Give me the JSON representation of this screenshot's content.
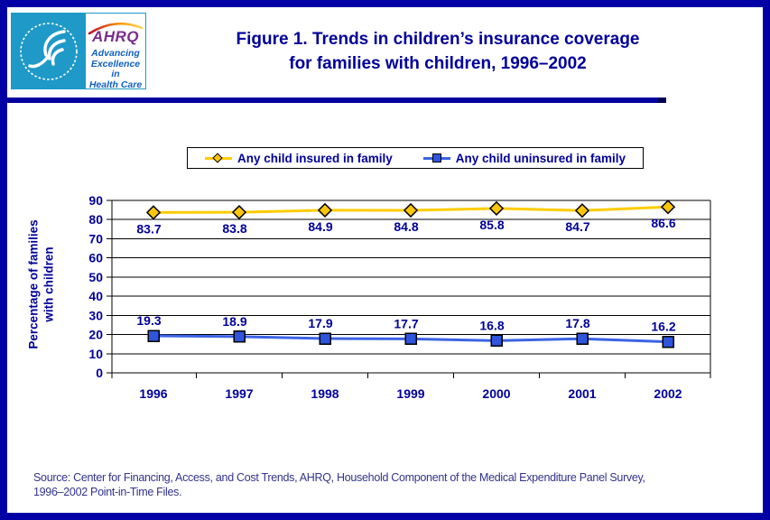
{
  "window": {
    "bg": "#FFFFFF",
    "border_color": "#0000A5"
  },
  "header": {
    "title_line1": "Figure 1. Trends in children’s insurance coverage",
    "title_line2": "for families with children, 1996–2002",
    "logo": {
      "ring_text": "DEPARTMENT OF HEALTH & HUMAN SERVICES · USA",
      "org": "AHRQ",
      "tagline_line1": "Advancing",
      "tagline_line2": "Excellence in",
      "tagline_line3": "Health Care"
    }
  },
  "chart_data": {
    "type": "line",
    "title": "Figure 1. Trends in children’s insurance coverage for families with children, 1996–2002",
    "categories": [
      "1996",
      "1997",
      "1998",
      "1999",
      "2000",
      "2001",
      "2002"
    ],
    "series": [
      {
        "name": "Any child insured in family",
        "marker": "diamond",
        "color": "#FFCC00",
        "marker_fill": "#FFC60B",
        "values": [
          83.7,
          83.8,
          84.9,
          84.8,
          85.8,
          84.7,
          86.6
        ],
        "label_position": "below"
      },
      {
        "name": "Any child uninsured in family",
        "marker": "square",
        "color": "#3C64E6",
        "marker_fill": "#2F55DD",
        "values": [
          19.3,
          18.9,
          17.9,
          17.7,
          16.8,
          17.8,
          16.2
        ],
        "label_position": "above"
      }
    ],
    "xlabel": "",
    "ylabel": "Percentage of families with children",
    "ylabel_line1": "Percentage of families",
    "ylabel_line2": "with children",
    "ylim": [
      0,
      90
    ],
    "ytick_step": 10,
    "grid": "horizontal",
    "legend_position": "top"
  },
  "source": {
    "line1": "Source: Center for Financing, Access, and Cost Trends, AHRQ, Household Component of the Medical Expenditure Panel Survey,",
    "line2": "1996–2002 Point-in-Time Files."
  },
  "colors": {
    "accent_navy": "#000099",
    "divider": "#0101A0",
    "divider_tip": "#000055",
    "hhs_blue": "#1E99C8",
    "ahrq_purple": "#7A2D8C",
    "logo_blue": "#1060C0"
  }
}
